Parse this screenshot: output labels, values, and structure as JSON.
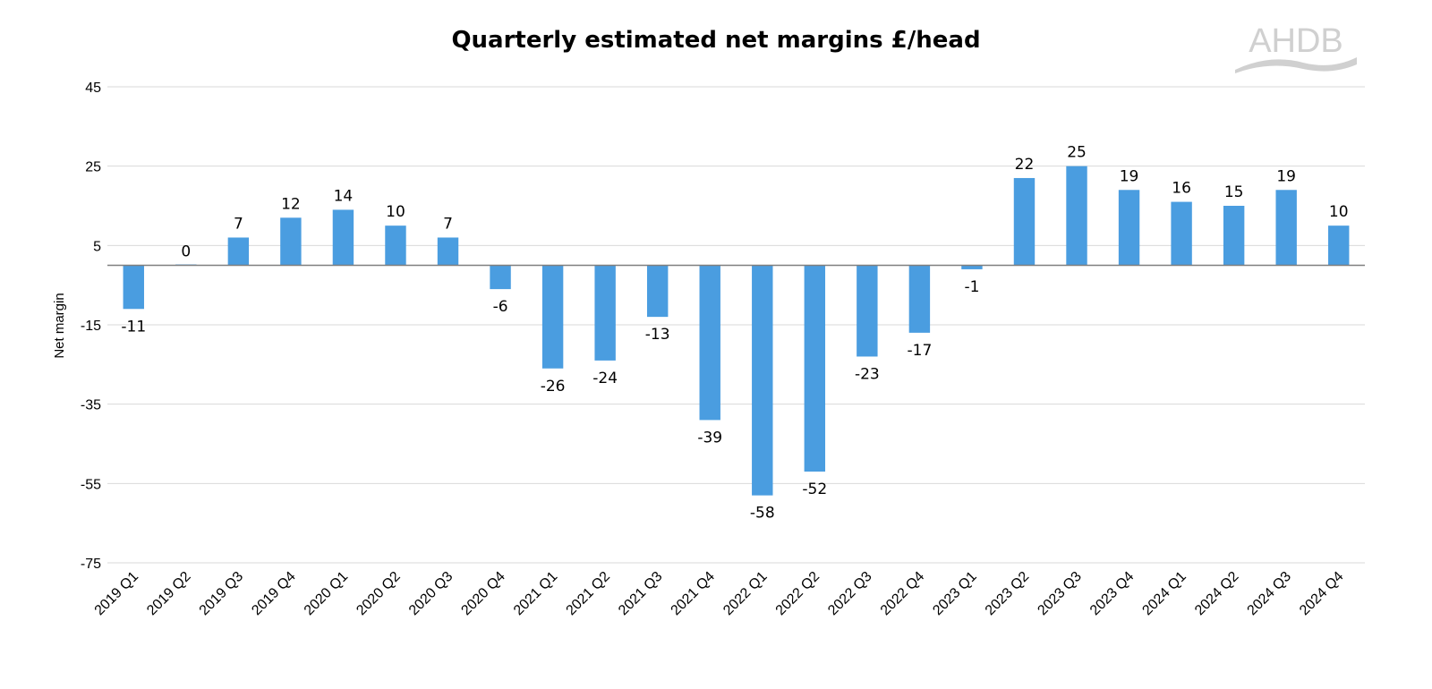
{
  "chart_data": {
    "type": "bar",
    "title": "Quarterly estimated net margins £/head",
    "xlabel": "",
    "ylabel": "Net margin",
    "ylim": [
      -75,
      45
    ],
    "yticks": [
      45,
      25,
      5,
      -15,
      -35,
      -55,
      -75
    ],
    "grid": true,
    "categories": [
      "2019 Q1",
      "2019 Q2",
      "2019 Q3",
      "2019 Q4",
      "2020 Q1",
      "2020 Q2",
      "2020 Q3",
      "2020 Q4",
      "2021 Q1",
      "2021 Q2",
      "2021 Q3",
      "2021 Q4",
      "2022 Q1",
      "2022 Q2",
      "2022 Q3",
      "2022 Q4",
      "2023 Q1",
      "2023 Q2",
      "2023 Q3",
      "2023 Q4",
      "2024 Q1",
      "2024 Q2",
      "2024 Q3",
      "2024 Q4"
    ],
    "series": [
      {
        "values": [
          -11,
          0,
          7,
          12,
          14,
          10,
          7,
          -6,
          -26,
          -24,
          -13,
          -39,
          -58,
          -52,
          -23,
          -17,
          -1,
          22,
          25,
          19,
          16,
          15,
          19,
          10
        ]
      }
    ],
    "data_labels": [
      "-11",
      "0",
      "7",
      "12",
      "14",
      "10",
      "7",
      "-6",
      "-26",
      "-24",
      "-13",
      "-39",
      "-58",
      "-52",
      "-23",
      "-17",
      "-1",
      "22",
      "25",
      "19",
      "16",
      "15",
      "19",
      "10"
    ],
    "bar_color": "#4a9de0",
    "grid_color": "#d9d9d9",
    "axis_color": "#7f7f7f"
  },
  "logo": {
    "text": "AHDB",
    "color": "#d0d0d0"
  }
}
